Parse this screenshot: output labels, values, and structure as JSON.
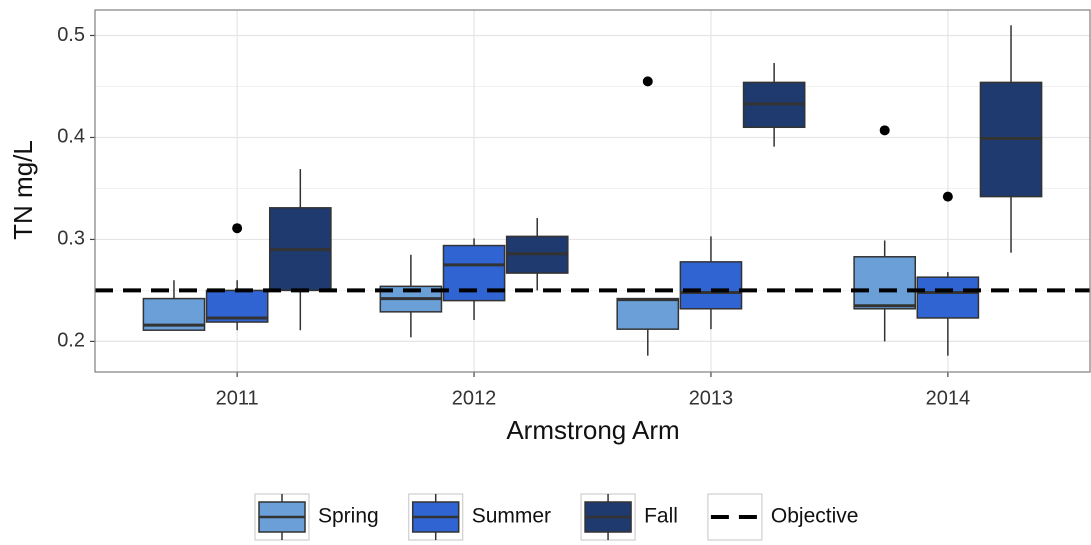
{
  "chart_data": {
    "type": "boxplot",
    "x_label": "Armstrong Arm",
    "y_label": "TN   mg/L",
    "categories": [
      "2011",
      "2012",
      "2013",
      "2014"
    ],
    "ylim": [
      0.17,
      0.525
    ],
    "yticks": [
      0.2,
      0.3,
      0.4,
      0.5
    ],
    "y_minor_ticks": [
      0.25,
      0.35,
      0.45
    ],
    "grid": true,
    "legend_position": "bottom",
    "series": [
      {
        "name": "Spring",
        "color": "#6a9fd8",
        "values": [
          {
            "low": 0.211,
            "q1": 0.211,
            "median": 0.216,
            "q3": 0.242,
            "high": 0.26,
            "outliers": []
          },
          {
            "low": 0.204,
            "q1": 0.229,
            "median": 0.242,
            "q3": 0.254,
            "high": 0.285,
            "outliers": []
          },
          {
            "low": 0.186,
            "q1": 0.212,
            "median": 0.241,
            "q3": 0.242,
            "high": 0.242,
            "outliers": [
              0.455
            ]
          },
          {
            "low": 0.2,
            "q1": 0.232,
            "median": 0.235,
            "q3": 0.283,
            "high": 0.299,
            "outliers": [
              0.407
            ]
          }
        ]
      },
      {
        "name": "Summer",
        "color": "#2f64d2",
        "values": [
          {
            "low": 0.211,
            "q1": 0.219,
            "median": 0.223,
            "q3": 0.25,
            "high": 0.26,
            "outliers": [
              0.311
            ]
          },
          {
            "low": 0.221,
            "q1": 0.24,
            "median": 0.275,
            "q3": 0.294,
            "high": 0.301,
            "outliers": []
          },
          {
            "low": 0.212,
            "q1": 0.232,
            "median": 0.248,
            "q3": 0.278,
            "high": 0.303,
            "outliers": []
          },
          {
            "low": 0.186,
            "q1": 0.223,
            "median": 0.248,
            "q3": 0.263,
            "high": 0.268,
            "outliers": [
              0.342
            ]
          }
        ]
      },
      {
        "name": "Fall",
        "color": "#1f3a6e",
        "values": [
          {
            "low": 0.211,
            "q1": 0.25,
            "median": 0.29,
            "q3": 0.331,
            "high": 0.369,
            "outliers": []
          },
          {
            "low": 0.25,
            "q1": 0.267,
            "median": 0.286,
            "q3": 0.303,
            "high": 0.321,
            "outliers": []
          },
          {
            "low": 0.391,
            "q1": 0.41,
            "median": 0.433,
            "q3": 0.454,
            "high": 0.473,
            "outliers": []
          },
          {
            "low": 0.287,
            "q1": 0.342,
            "median": 0.399,
            "q3": 0.454,
            "high": 0.51,
            "outliers": []
          }
        ]
      }
    ],
    "objective": {
      "name": "Objective",
      "value": 0.25,
      "color": "#000000"
    }
  }
}
